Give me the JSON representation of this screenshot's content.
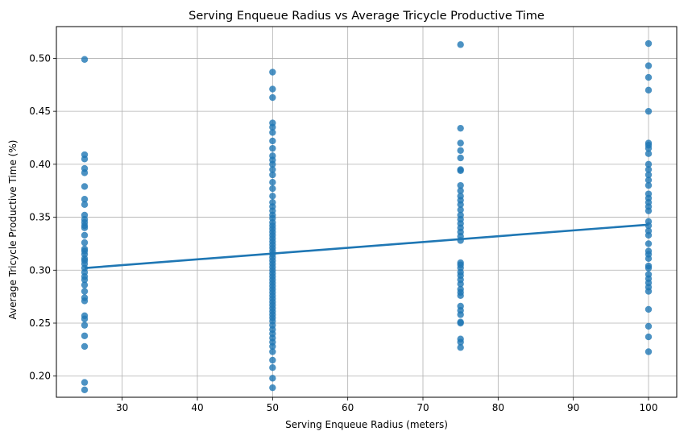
{
  "chart_data": {
    "type": "scatter",
    "title": "Serving Enqueue Radius vs Average Tricycle Productive Time",
    "xlabel": "Serving Enqueue Radius (meters)",
    "ylabel": "Average Tricycle Productive Time (%)",
    "xlim": [
      21.25,
      103.75
    ],
    "ylim": [
      0.18,
      0.53
    ],
    "xticks": [
      30,
      40,
      50,
      60,
      70,
      80,
      90,
      100
    ],
    "yticks": [
      0.2,
      0.25,
      0.3,
      0.35,
      0.4,
      0.45,
      0.5
    ],
    "grid": true,
    "point_color": "#1f77b4",
    "line_color": "#1f77b4",
    "regression_line": {
      "x": [
        25,
        100
      ],
      "y": [
        0.302,
        0.343
      ]
    },
    "series": [
      {
        "x": 25,
        "y": [
          0.499,
          0.409,
          0.405,
          0.396,
          0.392,
          0.379,
          0.367,
          0.362,
          0.352,
          0.348,
          0.345,
          0.342,
          0.34,
          0.333,
          0.326,
          0.32,
          0.318,
          0.315,
          0.311,
          0.309,
          0.306,
          0.302,
          0.298,
          0.294,
          0.291,
          0.286,
          0.28,
          0.274,
          0.271,
          0.257,
          0.254,
          0.248,
          0.238,
          0.228,
          0.194,
          0.187
        ]
      },
      {
        "x": 50,
        "y": [
          0.487,
          0.471,
          0.463,
          0.439,
          0.435,
          0.43,
          0.422,
          0.415,
          0.408,
          0.404,
          0.4,
          0.395,
          0.39,
          0.383,
          0.377,
          0.37,
          0.364,
          0.36,
          0.356,
          0.352,
          0.349,
          0.345,
          0.342,
          0.339,
          0.336,
          0.333,
          0.33,
          0.327,
          0.324,
          0.321,
          0.318,
          0.315,
          0.312,
          0.309,
          0.306,
          0.303,
          0.3,
          0.297,
          0.294,
          0.291,
          0.288,
          0.285,
          0.282,
          0.279,
          0.276,
          0.273,
          0.27,
          0.267,
          0.264,
          0.261,
          0.258,
          0.255,
          0.252,
          0.248,
          0.244,
          0.24,
          0.236,
          0.232,
          0.228,
          0.223,
          0.215,
          0.208,
          0.198,
          0.189
        ]
      },
      {
        "x": 75,
        "y": [
          0.513,
          0.434,
          0.42,
          0.413,
          0.406,
          0.395,
          0.394,
          0.38,
          0.375,
          0.37,
          0.366,
          0.362,
          0.357,
          0.352,
          0.348,
          0.344,
          0.34,
          0.336,
          0.332,
          0.328,
          0.307,
          0.305,
          0.302,
          0.298,
          0.295,
          0.291,
          0.287,
          0.282,
          0.279,
          0.276,
          0.266,
          0.262,
          0.258,
          0.251,
          0.25,
          0.235,
          0.232,
          0.227
        ]
      },
      {
        "x": 100,
        "y": [
          0.514,
          0.493,
          0.482,
          0.47,
          0.45,
          0.42,
          0.418,
          0.415,
          0.41,
          0.4,
          0.395,
          0.39,
          0.385,
          0.38,
          0.372,
          0.368,
          0.364,
          0.36,
          0.356,
          0.346,
          0.342,
          0.337,
          0.333,
          0.325,
          0.318,
          0.315,
          0.311,
          0.304,
          0.302,
          0.296,
          0.292,
          0.288,
          0.284,
          0.28,
          0.263,
          0.247,
          0.237,
          0.223
        ]
      }
    ]
  }
}
